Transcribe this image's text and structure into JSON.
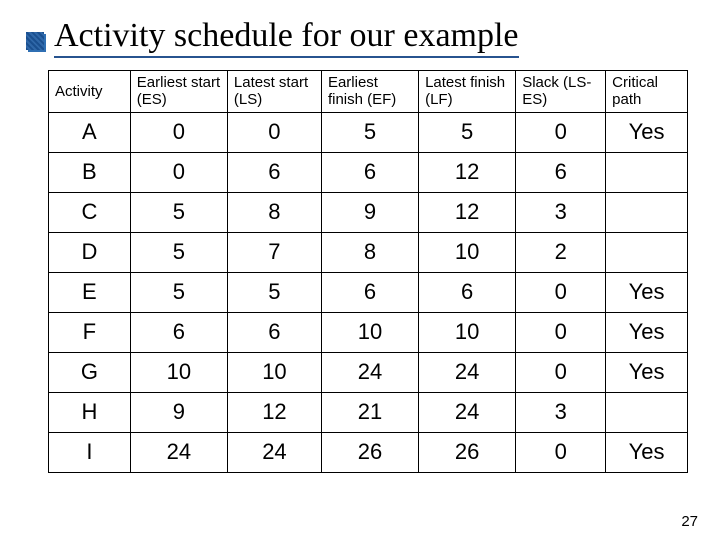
{
  "title": "Activity schedule for our example",
  "page_number": "27",
  "table": {
    "columns": [
      "Activity",
      "Earliest start (ES)",
      "Latest start (LS)",
      "Earliest finish (EF)",
      "Latest finish (LF)",
      "Slack (LS-ES)",
      "Critical path"
    ],
    "rows": [
      {
        "activity": "A",
        "es": "0",
        "ls": "0",
        "ef": "5",
        "lf": "5",
        "slack": "0",
        "critical": "Yes"
      },
      {
        "activity": "B",
        "es": "0",
        "ls": "6",
        "ef": "6",
        "lf": "12",
        "slack": "6",
        "critical": ""
      },
      {
        "activity": "C",
        "es": "5",
        "ls": "8",
        "ef": "9",
        "lf": "12",
        "slack": "3",
        "critical": ""
      },
      {
        "activity": "D",
        "es": "5",
        "ls": "7",
        "ef": "8",
        "lf": "10",
        "slack": "2",
        "critical": ""
      },
      {
        "activity": "E",
        "es": "5",
        "ls": "5",
        "ef": "6",
        "lf": "6",
        "slack": "0",
        "critical": "Yes"
      },
      {
        "activity": "F",
        "es": "6",
        "ls": "6",
        "ef": "10",
        "lf": "10",
        "slack": "0",
        "critical": "Yes"
      },
      {
        "activity": "G",
        "es": "10",
        "ls": "10",
        "ef": "24",
        "lf": "24",
        "slack": "0",
        "critical": "Yes"
      },
      {
        "activity": "H",
        "es": "9",
        "ls": "12",
        "ef": "21",
        "lf": "24",
        "slack": "3",
        "critical": ""
      },
      {
        "activity": "I",
        "es": "24",
        "ls": "24",
        "ef": "26",
        "lf": "26",
        "slack": "0",
        "critical": "Yes"
      }
    ]
  },
  "style": {
    "title_fontsize": 34,
    "title_underline_color": "#27538f",
    "bullet_color_a": "#1a4f8f",
    "bullet_color_b": "#2f67a8",
    "header_fontsize": 15,
    "cell_fontsize": 22,
    "border_color": "#000000",
    "background_color": "#ffffff",
    "font_header": "Arial",
    "font_title": "Times New Roman"
  }
}
